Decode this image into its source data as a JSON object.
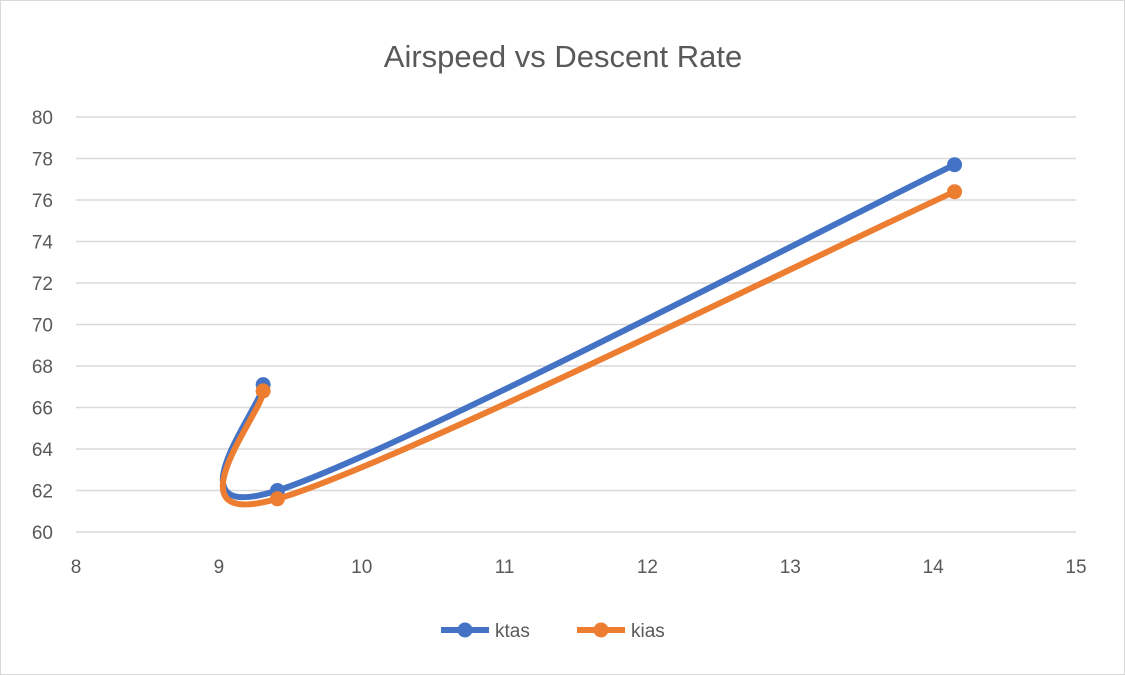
{
  "chart_data": {
    "type": "line",
    "title": "Airspeed vs Descent Rate",
    "xlabel": "",
    "ylabel": "",
    "xlim": [
      8,
      15
    ],
    "ylim": [
      60,
      80
    ],
    "x_ticks": [
      "8",
      "9",
      "10",
      "11",
      "12",
      "13",
      "14",
      "15"
    ],
    "y_ticks": [
      "60",
      "62",
      "64",
      "66",
      "68",
      "70",
      "72",
      "74",
      "76",
      "78",
      "80"
    ],
    "grid": "horizontal",
    "smoothed": true,
    "legend_position": "bottom",
    "series": [
      {
        "name": "ktas",
        "color": "#4472c4",
        "points": [
          [
            9.31,
            67.1
          ],
          [
            9.41,
            62.0
          ],
          [
            14.15,
            77.7
          ]
        ]
      },
      {
        "name": "kias",
        "color": "#ed7d31",
        "points": [
          [
            9.31,
            66.8
          ],
          [
            9.41,
            61.6
          ],
          [
            14.15,
            76.4
          ]
        ]
      }
    ]
  }
}
